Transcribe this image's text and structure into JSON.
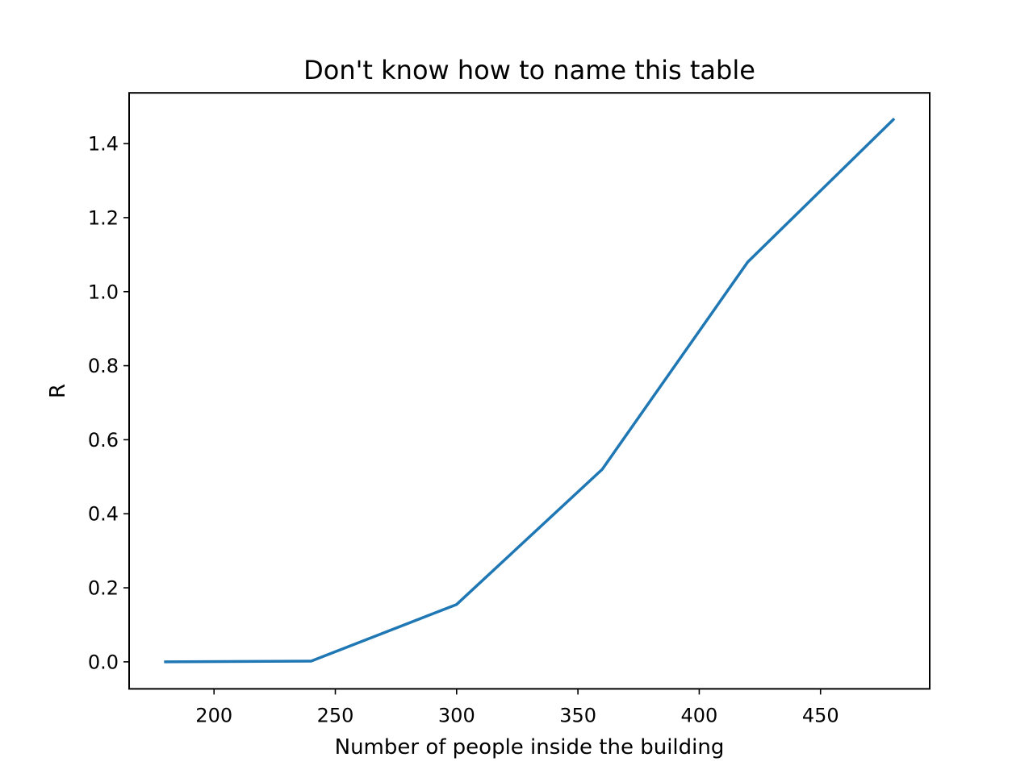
{
  "chart_data": {
    "type": "line",
    "title": "Don't know how to name this table",
    "xlabel": "Number of people inside the building",
    "ylabel": "R",
    "xlim": [
      165,
      495
    ],
    "ylim": [
      -0.073,
      1.537
    ],
    "xticks": [
      200,
      250,
      300,
      350,
      400,
      450
    ],
    "yticks": [
      0.0,
      0.2,
      0.4,
      0.6,
      0.8,
      1.0,
      1.2,
      1.4
    ],
    "grid": false,
    "legend": "none",
    "series": [
      {
        "color": "#1f77b4",
        "x": [
          180,
          240,
          300,
          360,
          420,
          480
        ],
        "y": [
          0.0,
          0.002,
          0.155,
          0.52,
          1.08,
          1.465
        ]
      }
    ]
  }
}
